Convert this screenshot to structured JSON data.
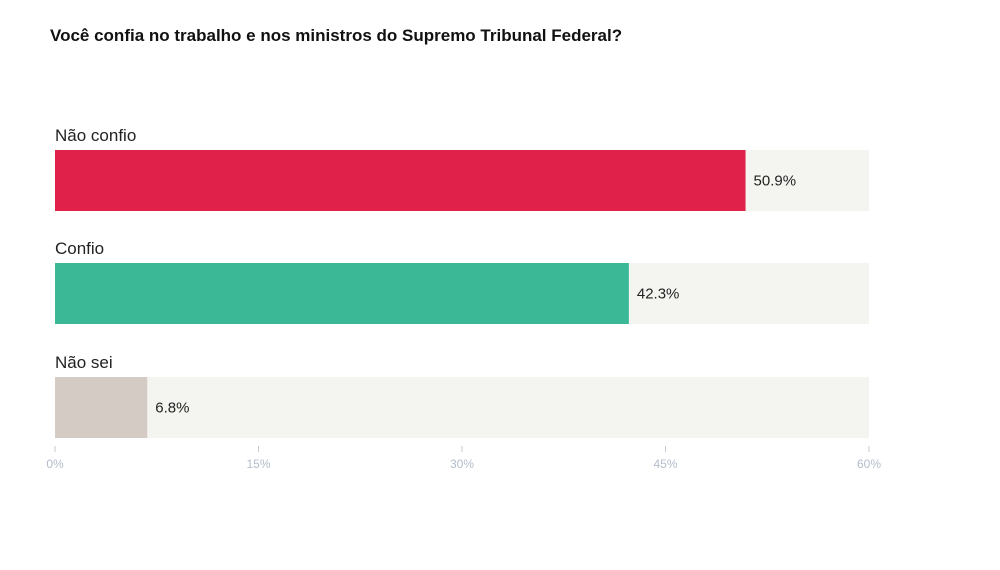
{
  "chart_data": {
    "type": "bar",
    "orientation": "horizontal",
    "title": "Você confia no trabalho e nos ministros do Supremo Tribunal Federal?",
    "categories": [
      "Não confio",
      "Confio",
      "Não sei"
    ],
    "values": [
      50.9,
      42.3,
      6.8
    ],
    "value_labels": [
      "50.9%",
      "42.3%",
      "6.8%"
    ],
    "colors": [
      "#e0224b",
      "#3bb896",
      "#d3cbc4"
    ],
    "track_color": "#f4f4f0",
    "xlim": [
      0,
      60
    ],
    "xticks": [
      0,
      15,
      30,
      45,
      60
    ],
    "xtick_labels": [
      "0%",
      "15%",
      "30%",
      "45%",
      "60%"
    ],
    "xlabel": "",
    "ylabel": ""
  }
}
